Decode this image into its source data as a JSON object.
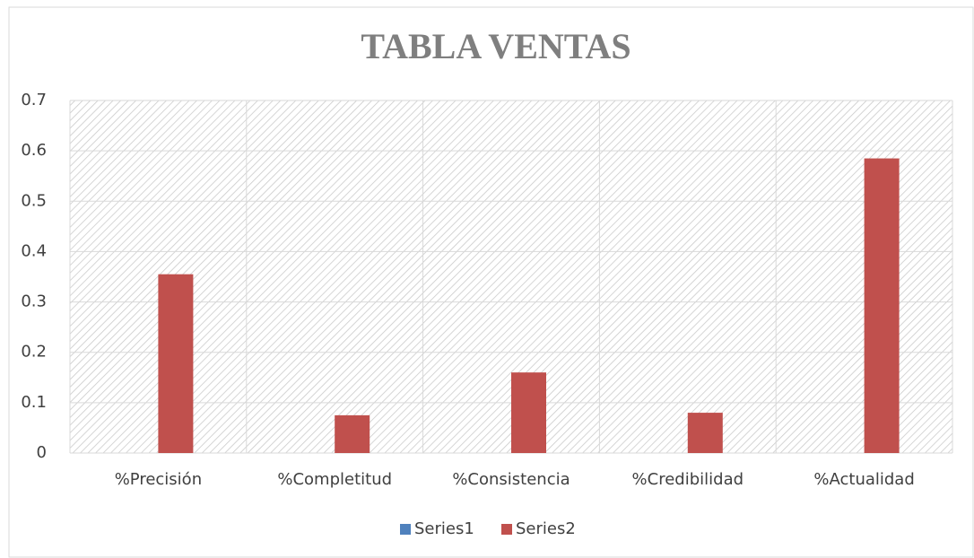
{
  "chart_data": {
    "type": "bar",
    "title": "TABLA  VENTAS",
    "categories": [
      "%Precisión",
      "%Completitud",
      "%Consistencia",
      "%Credibilidad",
      "%Actualidad"
    ],
    "series": [
      {
        "name": "Series1",
        "color": "#4f81bd",
        "values": [
          0,
          0,
          0,
          0,
          0
        ]
      },
      {
        "name": "Series2",
        "color": "#c0504d",
        "values": [
          0.355,
          0.075,
          0.16,
          0.08,
          0.585
        ]
      }
    ],
    "ylim": [
      0,
      0.7
    ],
    "yticks": [
      0,
      0.1,
      0.2,
      0.3,
      0.4,
      0.5,
      0.6,
      0.7
    ],
    "grid": true,
    "legend": "bottom"
  }
}
